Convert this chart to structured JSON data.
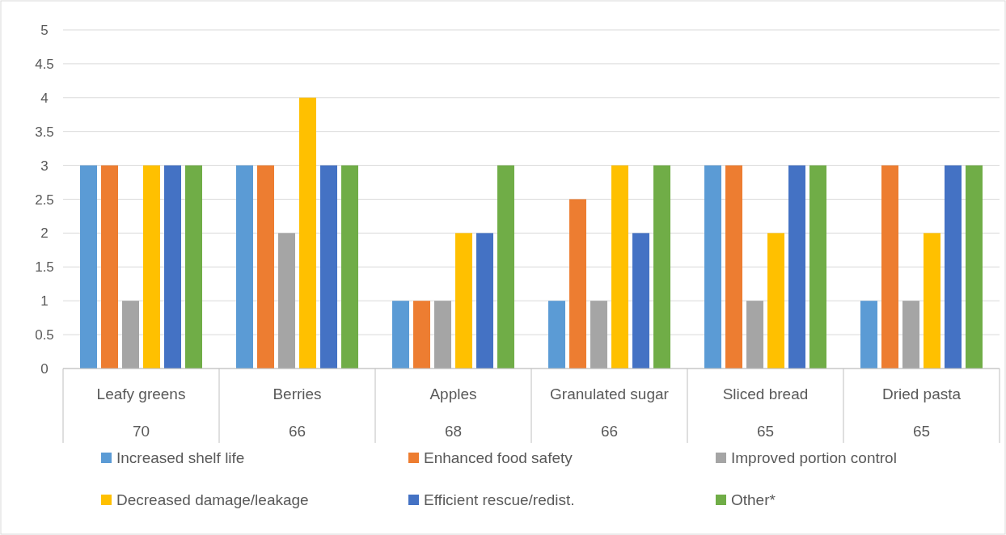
{
  "chart_data": {
    "type": "bar",
    "categories": [
      "Leafy greens",
      "Berries",
      "Apples",
      "Granulated sugar",
      "Sliced bread",
      "Dried pasta"
    ],
    "series": [
      {
        "name": "Increased shelf life",
        "color": "#5b9bd5",
        "values": [
          3,
          3,
          1,
          1,
          3,
          1
        ]
      },
      {
        "name": "Enhanced food safety",
        "color": "#ed7d31",
        "values": [
          3,
          3,
          1,
          2.5,
          3,
          3
        ]
      },
      {
        "name": "Improved portion control",
        "color": "#a5a5a5",
        "values": [
          1,
          2,
          1,
          1,
          1,
          1
        ]
      },
      {
        "name": "Decreased damage/leakage",
        "color": "#ffc000",
        "values": [
          3,
          4,
          2,
          3,
          2,
          2
        ]
      },
      {
        "name": "Efficient rescue/redist.",
        "color": "#4472c4",
        "values": [
          3,
          3,
          2,
          2,
          3,
          3
        ]
      },
      {
        "name": "Other*",
        "color": "#70ad47",
        "values": [
          3,
          3,
          3,
          3,
          3,
          3
        ]
      }
    ],
    "ylim": [
      0,
      5
    ],
    "yticks": [
      0,
      0.5,
      1,
      1.5,
      2,
      2.5,
      3,
      3.5,
      4,
      4.5,
      5
    ],
    "grid": "y",
    "legend": "bottom",
    "annotations": [
      "70",
      "66",
      "68",
      "66",
      "65",
      "65"
    ]
  }
}
